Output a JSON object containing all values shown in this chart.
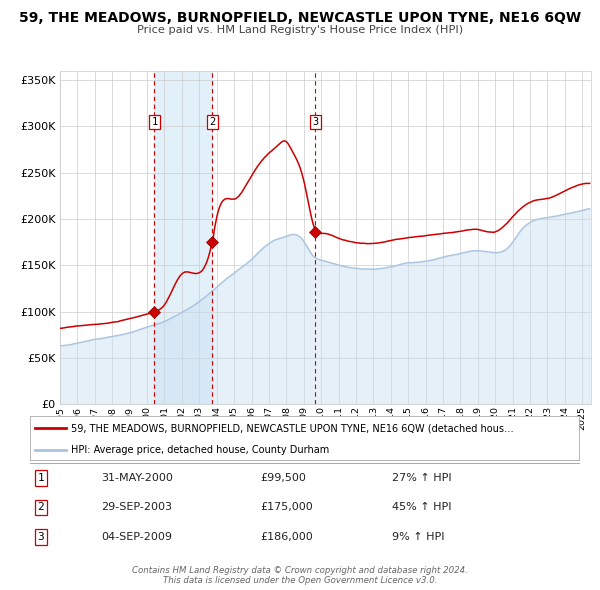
{
  "title": "59, THE MEADOWS, BURNOPFIELD, NEWCASTLE UPON TYNE, NE16 6QW",
  "subtitle": "Price paid vs. HM Land Registry's House Price Index (HPI)",
  "title_fontsize": 10.5,
  "subtitle_fontsize": 8.5,
  "hpi_color": "#aac4e0",
  "hpi_fill_color": "#c8dff2",
  "property_color": "#cc0000",
  "background_color": "#ffffff",
  "plot_bg_color": "#ffffff",
  "grid_color": "#cccccc",
  "ylim": [
    0,
    360000
  ],
  "yticks": [
    0,
    50000,
    100000,
    150000,
    200000,
    250000,
    300000,
    350000
  ],
  "xlim_start": 1995.0,
  "xlim_end": 2025.5,
  "sale_dates": [
    2000.42,
    2003.75,
    2009.67
  ],
  "sale_prices": [
    99500,
    175000,
    186000
  ],
  "sale_labels": [
    "1",
    "2",
    "3"
  ],
  "legend_property": "59, THE MEADOWS, BURNOPFIELD, NEWCASTLE UPON TYNE, NE16 6QW (detached hous…",
  "legend_hpi": "HPI: Average price, detached house, County Durham",
  "table_rows": [
    [
      "1",
      "31-MAY-2000",
      "£99,500",
      "27% ↑ HPI"
    ],
    [
      "2",
      "29-SEP-2003",
      "£175,000",
      "45% ↑ HPI"
    ],
    [
      "3",
      "04-SEP-2009",
      "£186,000",
      "9% ↑ HPI"
    ]
  ],
  "footer": "Contains HM Land Registry data © Crown copyright and database right 2024.\nThis data is licensed under the Open Government Licence v3.0.",
  "xtick_years": [
    1995,
    1996,
    1997,
    1998,
    1999,
    2000,
    2001,
    2002,
    2003,
    2004,
    2005,
    2006,
    2007,
    2008,
    2009,
    2010,
    2011,
    2012,
    2013,
    2014,
    2015,
    2016,
    2017,
    2018,
    2019,
    2020,
    2021,
    2022,
    2023,
    2024,
    2025
  ],
  "hpi_anchors_t": [
    1995,
    1996,
    1997,
    1998,
    1999,
    2000,
    2001,
    2002,
    2003,
    2004,
    2005,
    2006,
    2007,
    2008,
    2008.5,
    2009,
    2009.5,
    2010,
    2011,
    2012,
    2013,
    2014,
    2015,
    2016,
    2017,
    2018,
    2019,
    2020,
    2020.8,
    2021.5,
    2022,
    2023,
    2024,
    2025
  ],
  "hpi_anchors_v": [
    63000,
    66000,
    70000,
    74000,
    78000,
    84000,
    90000,
    100000,
    112000,
    128000,
    143000,
    158000,
    175000,
    183000,
    185000,
    178000,
    163000,
    158000,
    153000,
    150000,
    149000,
    152000,
    156000,
    158000,
    163000,
    167000,
    170000,
    168000,
    174000,
    192000,
    200000,
    205000,
    208000,
    212000
  ],
  "prop_anchors_t": [
    1995,
    1996,
    1997,
    1998,
    1999,
    2000.42,
    2001,
    2002,
    2003.75,
    2004,
    2005,
    2006,
    2007,
    2007.5,
    2008,
    2008.3,
    2009.0,
    2009.67,
    2010,
    2011,
    2012,
    2013,
    2014,
    2015,
    2016,
    2017,
    2018,
    2019,
    2020,
    2021,
    2022,
    2023,
    2024,
    2025
  ],
  "prop_anchors_v": [
    82000,
    84000,
    86000,
    88000,
    92000,
    99500,
    107000,
    140000,
    175000,
    200000,
    220000,
    245000,
    270000,
    278000,
    282000,
    273000,
    240000,
    186000,
    183000,
    178000,
    173000,
    172000,
    175000,
    178000,
    180000,
    183000,
    185000,
    188000,
    186000,
    202000,
    218000,
    222000,
    230000,
    238000
  ]
}
